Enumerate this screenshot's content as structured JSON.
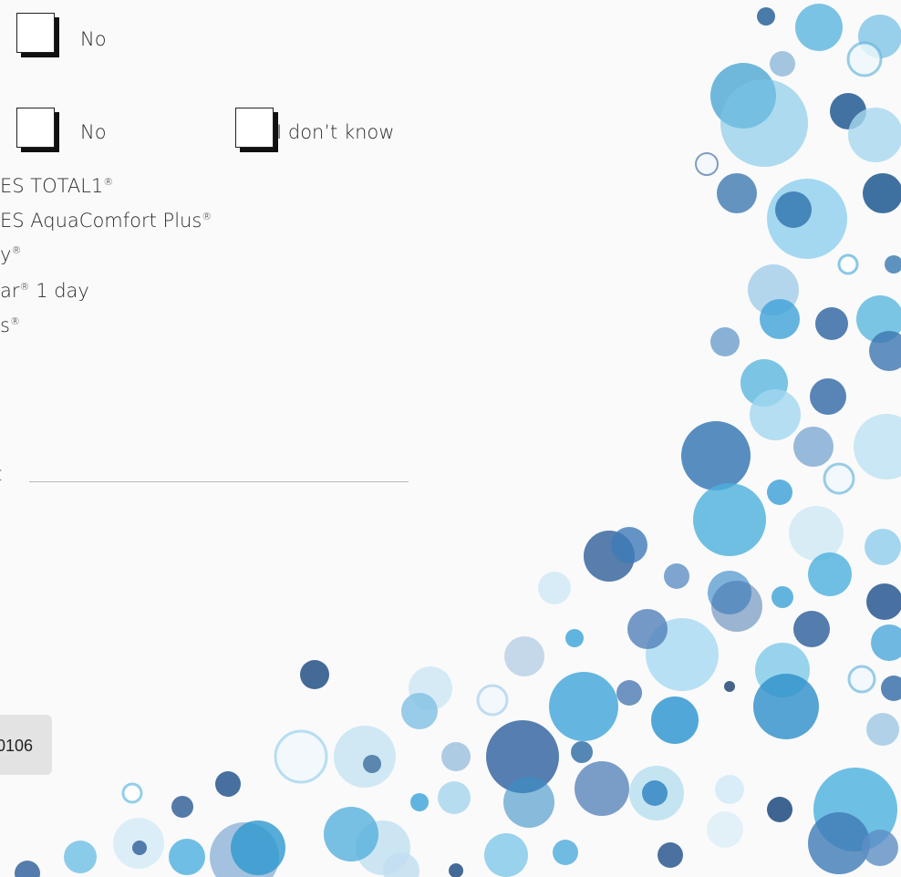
{
  "form": {
    "row1": {
      "option_no": "No"
    },
    "row2": {
      "option_no": "No",
      "option_unknown": "I don’t know"
    },
    "brands": [
      "ES TOTAL1®",
      "ES AquaComfort Plus®",
      "y®",
      "ar® 1 day",
      "s®"
    ],
    "other_label": "t",
    "footer_code": "0106"
  }
}
